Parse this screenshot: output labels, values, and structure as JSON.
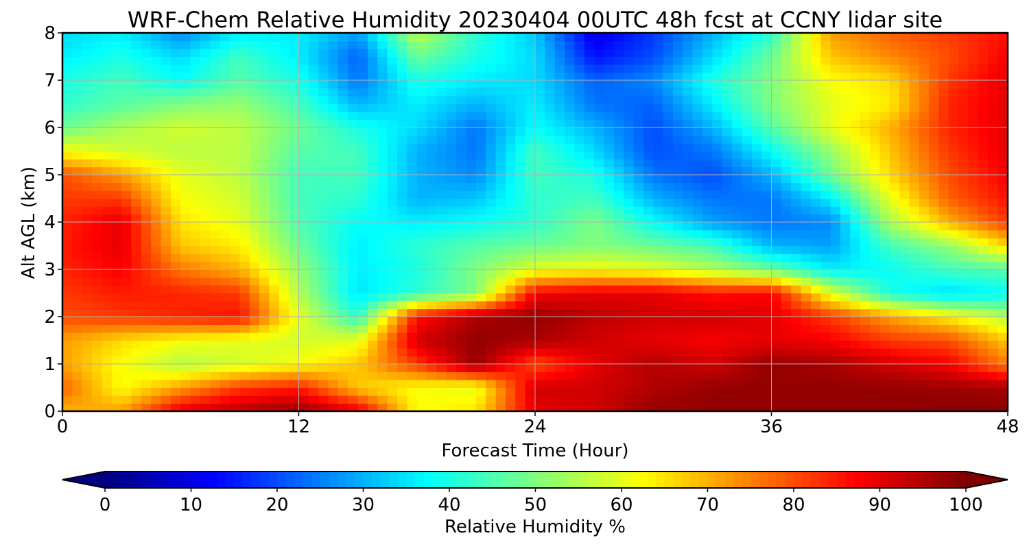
{
  "chart_data": {
    "type": "heatmap",
    "title": "WRF-Chem Relative Humidity 20230404 00UTC 48h fcst at CCNY lidar site",
    "xlabel": "Forecast Time (Hour)",
    "ylabel": "Alt AGL (km)",
    "xlim": [
      0,
      48
    ],
    "ylim": [
      0,
      8
    ],
    "xticks": [
      0,
      12,
      24,
      36,
      48
    ],
    "yticks": [
      0,
      1,
      2,
      3,
      4,
      5,
      6,
      7,
      8
    ],
    "grid": true,
    "colormap": "jet",
    "colorbar": {
      "label": "Relative Humidity %",
      "range": [
        0,
        100
      ],
      "ticks": [
        0,
        10,
        20,
        30,
        40,
        50,
        60,
        70,
        80,
        90,
        100
      ],
      "extend": "both",
      "placement": "bottom"
    },
    "x": [
      0,
      3,
      6,
      9,
      12,
      15,
      18,
      21,
      24,
      27,
      30,
      33,
      36,
      39,
      42,
      45,
      48
    ],
    "y": [
      0,
      0.5,
      1,
      1.5,
      2,
      2.5,
      3,
      3.5,
      4,
      4.5,
      5,
      5.5,
      6,
      6.5,
      7,
      7.5,
      8
    ],
    "z": [
      [
        70,
        72,
        90,
        95,
        98,
        90,
        62,
        65,
        90,
        92,
        98,
        98,
        98,
        98,
        98,
        99,
        99
      ],
      [
        78,
        62,
        72,
        82,
        85,
        68,
        62,
        60,
        92,
        92,
        95,
        98,
        98,
        98,
        98,
        97,
        96
      ],
      [
        72,
        62,
        55,
        58,
        62,
        68,
        82,
        98,
        80,
        90,
        95,
        92,
        98,
        96,
        92,
        88,
        75
      ],
      [
        72,
        66,
        62,
        60,
        58,
        60,
        92,
        98,
        96,
        92,
        90,
        88,
        90,
        88,
        82,
        80,
        68
      ],
      [
        80,
        82,
        84,
        86,
        60,
        42,
        86,
        96,
        98,
        94,
        92,
        92,
        90,
        82,
        72,
        64,
        55
      ],
      [
        82,
        85,
        84,
        82,
        55,
        35,
        42,
        50,
        88,
        90,
        90,
        86,
        88,
        60,
        40,
        34,
        38
      ],
      [
        84,
        88,
        76,
        70,
        52,
        36,
        40,
        50,
        60,
        62,
        60,
        55,
        48,
        36,
        38,
        44,
        46
      ],
      [
        85,
        90,
        68,
        64,
        48,
        36,
        42,
        46,
        48,
        50,
        48,
        44,
        30,
        28,
        44,
        52,
        66
      ],
      [
        84,
        90,
        65,
        60,
        45,
        38,
        36,
        38,
        42,
        50,
        38,
        28,
        24,
        26,
        54,
        70,
        82
      ],
      [
        82,
        82,
        62,
        58,
        44,
        42,
        30,
        32,
        42,
        44,
        30,
        24,
        24,
        36,
        60,
        78,
        86
      ],
      [
        80,
        72,
        60,
        56,
        44,
        44,
        30,
        26,
        44,
        40,
        24,
        20,
        30,
        48,
        66,
        80,
        88
      ],
      [
        62,
        58,
        56,
        56,
        46,
        44,
        30,
        24,
        44,
        34,
        20,
        24,
        38,
        52,
        68,
        82,
        90
      ],
      [
        48,
        54,
        58,
        56,
        48,
        40,
        34,
        24,
        38,
        30,
        20,
        30,
        46,
        60,
        70,
        84,
        90
      ],
      [
        42,
        46,
        50,
        52,
        44,
        30,
        36,
        30,
        36,
        24,
        22,
        36,
        50,
        60,
        64,
        84,
        90
      ],
      [
        40,
        44,
        38,
        46,
        40,
        24,
        40,
        36,
        34,
        22,
        26,
        40,
        50,
        62,
        66,
        82,
        90
      ],
      [
        36,
        40,
        34,
        44,
        36,
        22,
        48,
        40,
        34,
        14,
        20,
        34,
        48,
        68,
        74,
        80,
        88
      ],
      [
        34,
        36,
        26,
        36,
        36,
        28,
        56,
        42,
        32,
        10,
        18,
        30,
        42,
        72,
        78,
        82,
        86
      ]
    ]
  }
}
